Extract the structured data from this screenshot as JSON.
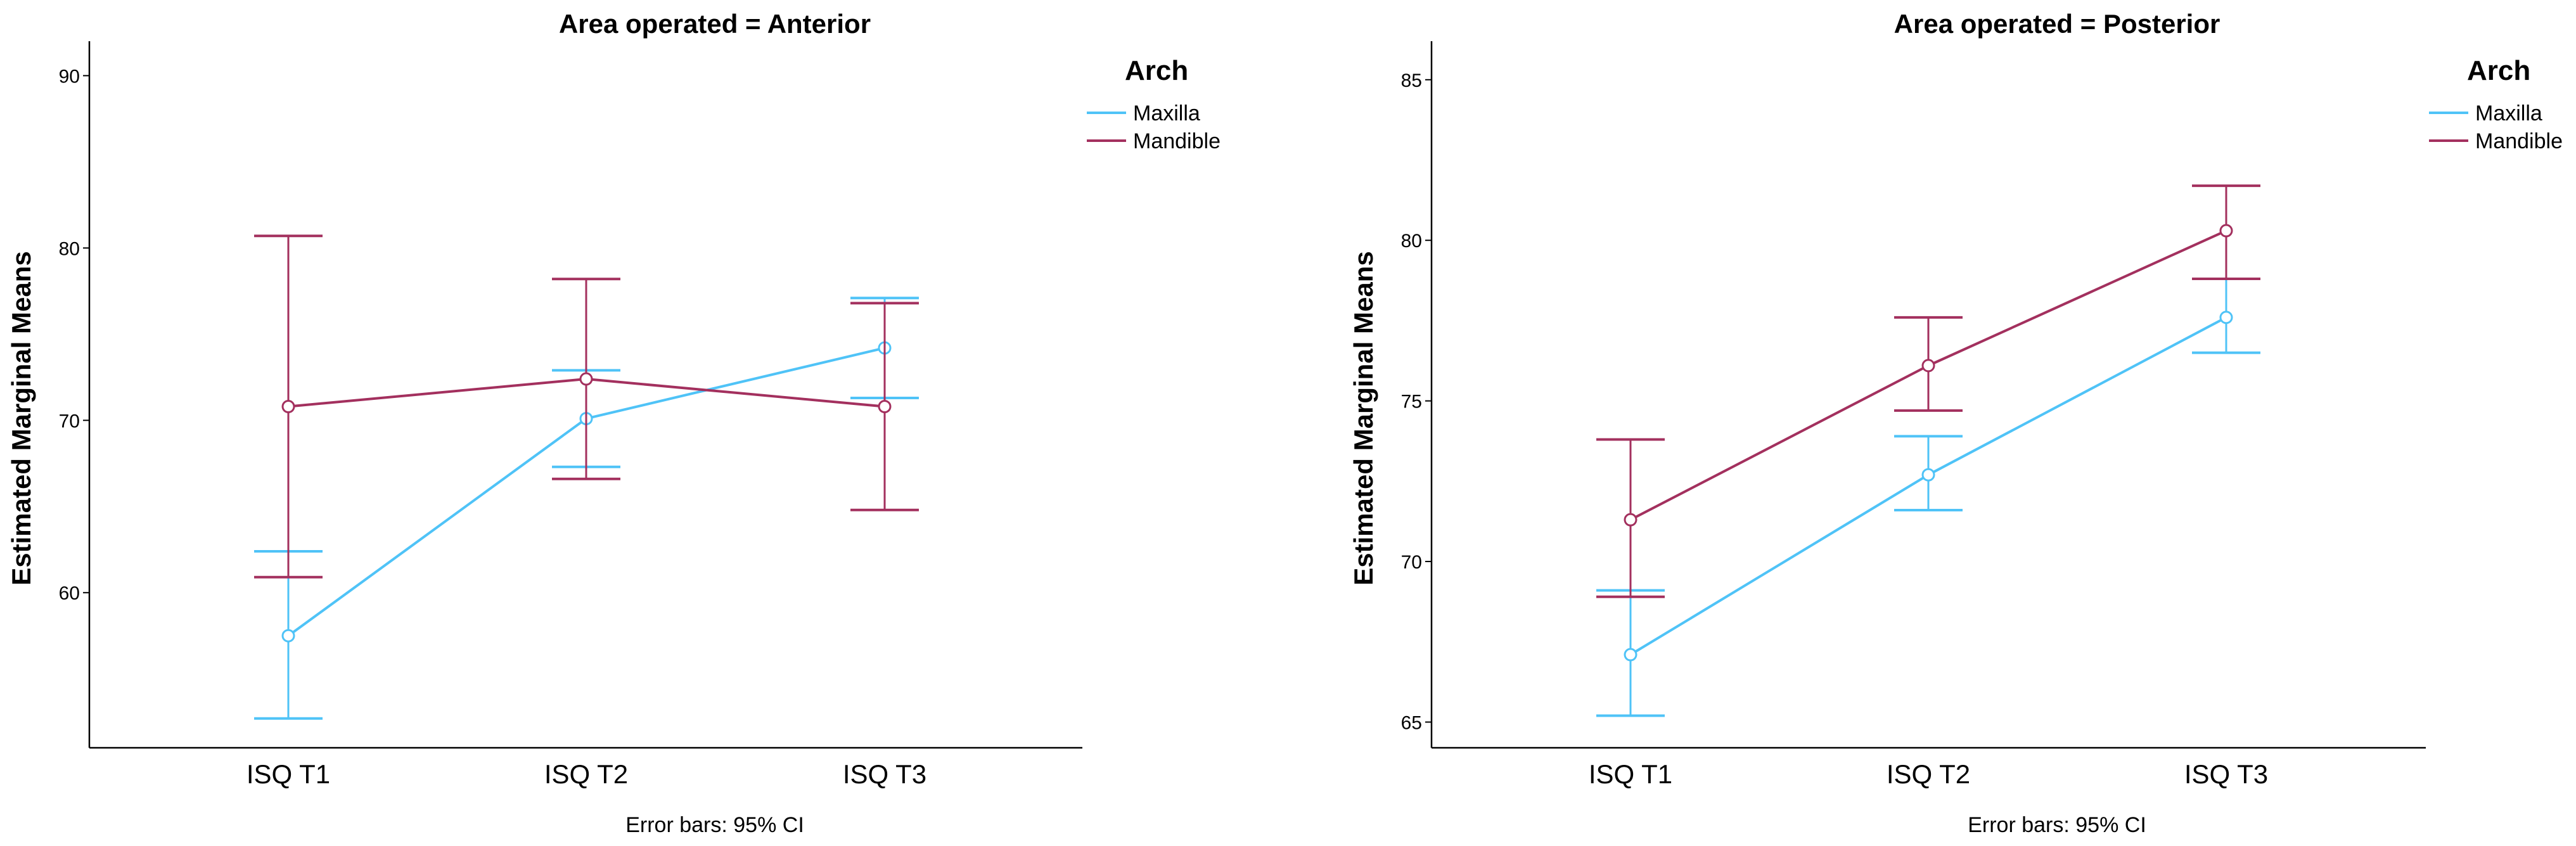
{
  "chart_data": [
    {
      "type": "line",
      "title": "Area operated = Anterior",
      "ylabel": "Estimated Marginal Means",
      "xlabel": "",
      "footnote": "Error bars: 95% CI",
      "categories": [
        "ISQ T1",
        "ISQ T2",
        "ISQ T3"
      ],
      "ylim": [
        51,
        92
      ],
      "yticks": [
        60,
        70,
        80,
        90
      ],
      "legend": {
        "title": "Arch",
        "position": "top-right"
      },
      "series": [
        {
          "name": "Maxilla",
          "color": "#4fc3f7",
          "values": [
            57.5,
            70.1,
            74.2
          ],
          "ci_low": [
            52.7,
            67.3,
            71.3
          ],
          "ci_high": [
            62.4,
            72.9,
            77.1
          ]
        },
        {
          "name": "Mandible",
          "color": "#a3305e",
          "values": [
            70.8,
            72.4,
            70.8
          ],
          "ci_low": [
            60.9,
            66.6,
            64.8
          ],
          "ci_high": [
            80.7,
            78.2,
            76.8
          ]
        }
      ]
    },
    {
      "type": "line",
      "title": "Area operated = Posterior",
      "ylabel": "Estimated Marginal Means",
      "xlabel": "",
      "footnote": "Error bars: 95% CI",
      "categories": [
        "ISQ T1",
        "ISQ T2",
        "ISQ T3"
      ],
      "ylim": [
        64.2,
        86.2
      ],
      "yticks": [
        65,
        70,
        75,
        80,
        85
      ],
      "legend": {
        "title": "Arch",
        "position": "top-right"
      },
      "series": [
        {
          "name": "Maxilla",
          "color": "#4fc3f7",
          "values": [
            67.1,
            72.7,
            77.6
          ],
          "ci_low": [
            65.2,
            71.6,
            76.5
          ],
          "ci_high": [
            69.1,
            73.9,
            78.8
          ]
        },
        {
          "name": "Mandible",
          "color": "#a3305e",
          "values": [
            71.3,
            76.1,
            80.3
          ],
          "ci_low": [
            68.9,
            74.7,
            78.8
          ],
          "ci_high": [
            73.8,
            77.6,
            81.7
          ]
        }
      ]
    }
  ]
}
